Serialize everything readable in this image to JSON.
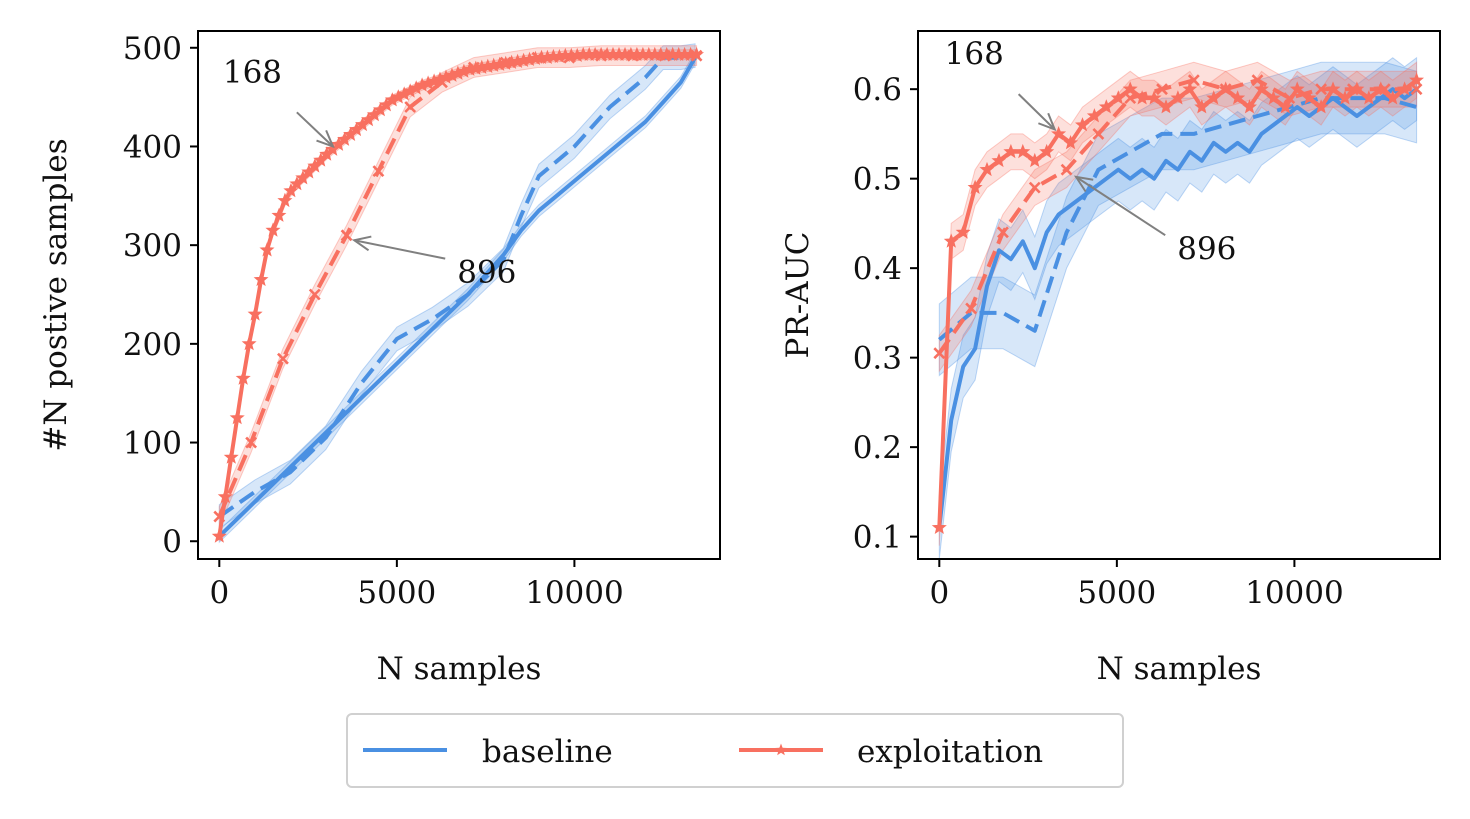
{
  "colors": {
    "baseline": "#4a90e2",
    "exploitation": "#f87060",
    "baseline_band": "#4a90e2",
    "exploitation_band": "#f87060",
    "annotation_arrow": "#808080"
  },
  "legend": {
    "placement": "bottom-center",
    "entries": [
      {
        "key": "baseline",
        "label": "baseline"
      },
      {
        "key": "exploitation",
        "label": "exploitation"
      }
    ]
  },
  "chart_data": [
    {
      "type": "line",
      "xlabel": "N samples",
      "ylabel": "#N postive samples",
      "xlim": [
        -600,
        14100
      ],
      "ylim": [
        -18,
        517
      ],
      "x_ticks": [
        0,
        5000,
        10000
      ],
      "x_tick_labels": [
        "0",
        "5000",
        "10000"
      ],
      "y_ticks": [
        0,
        100,
        200,
        300,
        400,
        500
      ],
      "y_tick_labels": [
        "0",
        "100",
        "200",
        "300",
        "400",
        "500"
      ],
      "grid": false,
      "annotations": [
        {
          "text": "168",
          "text_at": [
            100,
            465
          ],
          "arrow_to": [
            3200,
            400
          ]
        },
        {
          "text": "896",
          "text_at": [
            6700,
            262
          ],
          "arrow_to": [
            3800,
            305
          ]
        }
      ],
      "series": [
        {
          "key": "baseline",
          "variant": "168",
          "style": "solid",
          "marker": "none",
          "x": [
            0,
            1000,
            2000,
            3000,
            4000,
            5000,
            6000,
            7000,
            8000,
            8500,
            9000,
            9500,
            10000,
            11000,
            12000,
            12500,
            13000,
            13400
          ],
          "y": [
            5,
            40,
            75,
            110,
            145,
            180,
            215,
            250,
            290,
            315,
            335,
            350,
            365,
            395,
            425,
            445,
            465,
            490
          ],
          "band": 6
        },
        {
          "key": "baseline",
          "variant": "896",
          "style": "dashed",
          "marker": "none",
          "x": [
            0,
            1000,
            2000,
            3000,
            4000,
            5000,
            6000,
            7000,
            8000,
            8500,
            9000,
            9500,
            10000,
            10500,
            11000,
            11500,
            12000,
            12500,
            13000,
            13400
          ],
          "y": [
            25,
            50,
            70,
            105,
            160,
            205,
            225,
            250,
            285,
            330,
            370,
            385,
            400,
            420,
            440,
            455,
            470,
            490,
            490,
            492
          ],
          "band": 12
        },
        {
          "key": "exploitation",
          "variant": "168",
          "style": "solid",
          "marker": "star",
          "x": [
            0,
            168,
            336,
            504,
            672,
            840,
            1008,
            1176,
            1344,
            1512,
            1680,
            1848,
            2016,
            2184,
            2352,
            2520,
            2688,
            2856,
            3024,
            3192,
            3360,
            3528,
            3696,
            3864,
            4032,
            4200,
            4368,
            4536,
            4704,
            4872,
            5040,
            5208,
            5376,
            5544,
            5712,
            5880,
            6048,
            6216,
            6384,
            6552,
            6720,
            6888,
            7056,
            7224,
            7392,
            7560,
            7728,
            7896,
            8064,
            8232,
            8400,
            8568,
            8736,
            8904,
            9072,
            9240,
            9408,
            9576,
            9744,
            9912,
            10080,
            10248,
            10416,
            10584,
            10752,
            10920,
            11088,
            11256,
            11424,
            11592,
            11760,
            11928,
            12096,
            12264,
            12432,
            12600,
            12768,
            12936,
            13104,
            13272,
            13440
          ],
          "y": [
            5,
            45,
            85,
            125,
            165,
            200,
            230,
            265,
            295,
            315,
            330,
            345,
            355,
            362,
            368,
            374,
            380,
            386,
            392,
            397,
            402,
            407,
            412,
            417,
            422,
            427,
            432,
            437,
            442,
            447,
            450,
            453,
            456,
            459,
            462,
            464,
            466,
            468,
            470,
            472,
            474,
            476,
            478,
            479,
            480,
            481,
            482,
            483,
            484,
            485,
            486,
            487,
            488,
            489,
            490,
            490,
            491,
            491,
            492,
            492,
            492,
            493,
            493,
            493,
            493,
            493,
            493,
            493,
            493,
            493,
            493,
            493,
            493,
            493,
            493,
            493,
            493,
            493,
            493,
            493,
            493
          ],
          "band": 5
        },
        {
          "key": "exploitation",
          "variant": "896",
          "style": "dashed",
          "marker": "x",
          "x": [
            0,
            896,
            1792,
            2688,
            3584,
            4480,
            5376,
            6272,
            7168,
            8064,
            8960,
            9856,
            10752,
            11648,
            12544,
            13440
          ],
          "y": [
            25,
            100,
            185,
            250,
            310,
            375,
            440,
            465,
            480,
            485,
            490,
            490,
            492,
            492,
            492,
            492
          ],
          "band": 10
        }
      ]
    },
    {
      "type": "line",
      "xlabel": "N samples",
      "ylabel": "PR-AUC",
      "xlim": [
        -600,
        14100
      ],
      "ylim": [
        0.075,
        0.665
      ],
      "x_ticks": [
        0,
        5000,
        10000
      ],
      "x_tick_labels": [
        "0",
        "5000",
        "10000"
      ],
      "y_ticks": [
        0.1,
        0.2,
        0.3,
        0.4,
        0.5,
        0.6
      ],
      "y_tick_labels": [
        "0.1",
        "0.2",
        "0.3",
        "0.4",
        "0.5",
        "0.6"
      ],
      "grid": false,
      "annotations": [
        {
          "text": "168",
          "text_at": [
            150,
            0.628
          ],
          "arrow_to": [
            3250,
            0.555
          ]
        },
        {
          "text": "896",
          "text_at": [
            6700,
            0.41
          ],
          "arrow_to": [
            3850,
            0.502
          ]
        }
      ],
      "series": [
        {
          "key": "baseline",
          "variant": "168",
          "style": "solid",
          "marker": "none",
          "x": [
            0,
            336,
            672,
            1008,
            1344,
            1680,
            2016,
            2352,
            2688,
            3024,
            3360,
            3696,
            4032,
            4368,
            4704,
            5040,
            5376,
            5712,
            6048,
            6384,
            6720,
            7056,
            7392,
            7728,
            8064,
            8400,
            8736,
            9072,
            9408,
            9744,
            10080,
            10416,
            10752,
            11088,
            11424,
            11760,
            12096,
            12432,
            12768,
            13104,
            13440
          ],
          "y": [
            0.11,
            0.23,
            0.29,
            0.31,
            0.38,
            0.42,
            0.41,
            0.43,
            0.4,
            0.44,
            0.46,
            0.47,
            0.48,
            0.49,
            0.5,
            0.51,
            0.5,
            0.51,
            0.5,
            0.52,
            0.51,
            0.53,
            0.52,
            0.54,
            0.53,
            0.54,
            0.53,
            0.55,
            0.56,
            0.57,
            0.58,
            0.57,
            0.58,
            0.59,
            0.58,
            0.57,
            0.58,
            0.59,
            0.6,
            0.59,
            0.6
          ],
          "band": 0.035
        },
        {
          "key": "baseline",
          "variant": "896",
          "style": "dashed",
          "marker": "none",
          "x": [
            0,
            896,
            1792,
            2688,
            3584,
            4480,
            5376,
            6272,
            7168,
            8064,
            8960,
            9856,
            10752,
            11648,
            12544,
            13440
          ],
          "y": [
            0.32,
            0.35,
            0.35,
            0.33,
            0.44,
            0.51,
            0.53,
            0.55,
            0.55,
            0.56,
            0.57,
            0.58,
            0.59,
            0.59,
            0.59,
            0.58
          ],
          "band": 0.04
        },
        {
          "key": "exploitation",
          "variant": "168",
          "style": "solid",
          "marker": "star",
          "x": [
            0,
            336,
            672,
            1008,
            1344,
            1680,
            2016,
            2352,
            2688,
            3024,
            3360,
            3696,
            4032,
            4368,
            4704,
            5040,
            5376,
            5712,
            6048,
            6384,
            6720,
            7056,
            7392,
            7728,
            8064,
            8400,
            8736,
            9072,
            9408,
            9744,
            10080,
            10416,
            10752,
            11088,
            11424,
            11760,
            12096,
            12432,
            12768,
            13104,
            13440
          ],
          "y": [
            0.11,
            0.43,
            0.44,
            0.49,
            0.51,
            0.52,
            0.53,
            0.53,
            0.52,
            0.53,
            0.55,
            0.54,
            0.56,
            0.57,
            0.58,
            0.59,
            0.6,
            0.59,
            0.59,
            0.58,
            0.59,
            0.6,
            0.58,
            0.59,
            0.6,
            0.59,
            0.58,
            0.6,
            0.59,
            0.58,
            0.6,
            0.59,
            0.58,
            0.6,
            0.59,
            0.6,
            0.59,
            0.6,
            0.59,
            0.6,
            0.61
          ],
          "band": 0.02
        },
        {
          "key": "exploitation",
          "variant": "896",
          "style": "dashed",
          "marker": "x",
          "x": [
            0,
            896,
            1792,
            2688,
            3584,
            4480,
            5376,
            6272,
            7168,
            8064,
            8960,
            9856,
            10752,
            11648,
            12544,
            13440
          ],
          "y": [
            0.305,
            0.355,
            0.44,
            0.49,
            0.51,
            0.55,
            0.59,
            0.6,
            0.61,
            0.6,
            0.61,
            0.59,
            0.6,
            0.6,
            0.6,
            0.6
          ],
          "band": 0.02
        }
      ]
    }
  ]
}
